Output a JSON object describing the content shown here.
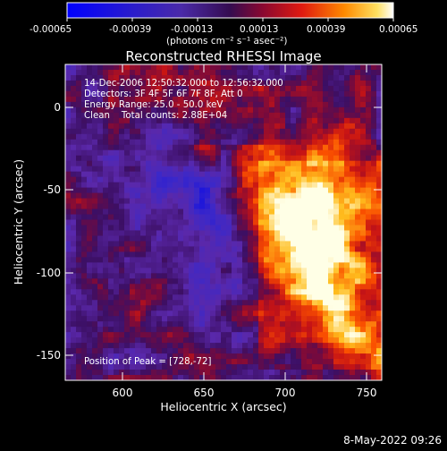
{
  "colorbar": {
    "ticks": [
      "-0.00065",
      "-0.00039",
      "-0.00013",
      "0.00013",
      "0.00039",
      "0.00065"
    ],
    "unit_label": "(photons cm⁻² s⁻¹ asec⁻²)"
  },
  "plot": {
    "title": "Reconstructed RHESSI Image",
    "xlabel": "Heliocentric X (arcsec)",
    "ylabel": "Heliocentric Y (arcsec)",
    "xticks": [
      "600",
      "650",
      "700",
      "750"
    ],
    "yticks": [
      "0",
      "-50",
      "-100",
      "-150"
    ],
    "annotations": [
      "14-Dec-2006 12:50:32.000 to 12:56:32.000",
      "Detectors: 3F 4F 5F 6F 7F 8F, Att 0",
      "Energy Range: 25.0 - 50.0 keV",
      "Clean    Total counts: 2.88E+04"
    ],
    "peak_label": "Position of Peak = [728,-72]"
  },
  "footer": {
    "date": "8-May-2022 09:26"
  },
  "chart_data": {
    "type": "heatmap",
    "title": "Reconstructed RHESSI Image",
    "xlabel": "Heliocentric X (arcsec)",
    "ylabel": "Heliocentric Y (arcsec)",
    "xlim": [
      566,
      760
    ],
    "ylim": [
      -172,
      28
    ],
    "color_range": [
      -0.00065,
      0.00065
    ],
    "peak": [
      728,
      -72
    ]
  }
}
